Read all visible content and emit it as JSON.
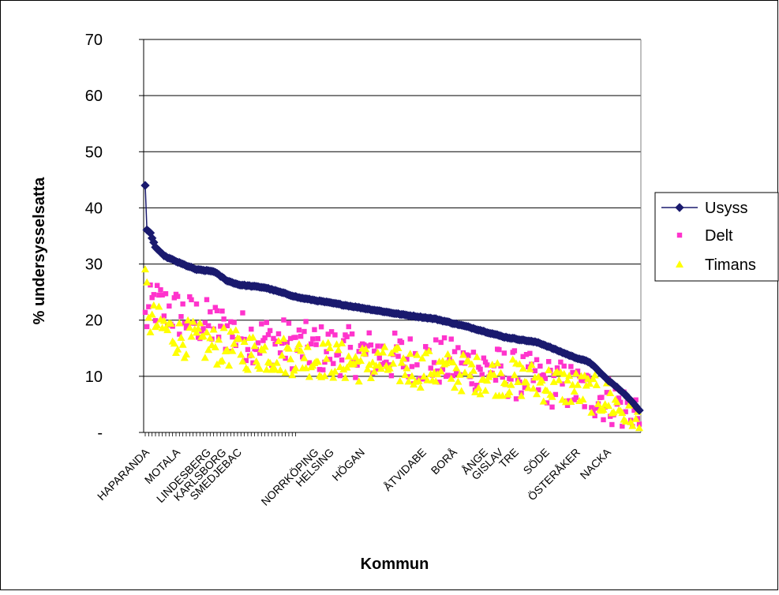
{
  "chart_data": {
    "type": "scatter",
    "title": "",
    "xlabel": "Kommun",
    "ylabel": "% undersysselsatta",
    "ylim": [
      0,
      70
    ],
    "yticks": [
      {
        "value": 0,
        "label": "-"
      },
      {
        "value": 10,
        "label": "10"
      },
      {
        "value": 20,
        "label": "20"
      },
      {
        "value": 30,
        "label": "30"
      },
      {
        "value": 40,
        "label": "40"
      },
      {
        "value": 50,
        "label": "50"
      },
      {
        "value": 60,
        "label": "60"
      },
      {
        "value": 70,
        "label": "70"
      }
    ],
    "grid": "horizontal",
    "legend_position": "right",
    "x_count": 290,
    "category_labels": [
      {
        "index": 0,
        "label": "HAPARANDA"
      },
      {
        "index": 18,
        "label": "MOTALA"
      },
      {
        "index": 36,
        "label": "LINDESBERG"
      },
      {
        "index": 45,
        "label": "KARLSBORG"
      },
      {
        "index": 54,
        "label": "SMEDJEBAC"
      },
      {
        "index": 99,
        "label": "NORRKÖPING"
      },
      {
        "index": 108,
        "label": "HELSING"
      },
      {
        "index": 126,
        "label": "HÖGAN"
      },
      {
        "index": 162,
        "label": "ÅTVIDABE"
      },
      {
        "index": 180,
        "label": "BORÅ"
      },
      {
        "index": 198,
        "label": "ÅNGE"
      },
      {
        "index": 207,
        "label": "GISLAV"
      },
      {
        "index": 216,
        "label": "TRE"
      },
      {
        "index": 234,
        "label": "SÖDE"
      },
      {
        "index": 252,
        "label": "ÖSTERÅKER"
      },
      {
        "index": 270,
        "label": "NACKA"
      }
    ],
    "series": [
      {
        "name": "Usyss",
        "marker": "diamond",
        "color": "#1a1a6e",
        "line": true,
        "anchors": [
          [
            0,
            44
          ],
          [
            1,
            36
          ],
          [
            3,
            35.5
          ],
          [
            6,
            33
          ],
          [
            9,
            32
          ],
          [
            12,
            31.3
          ],
          [
            20,
            30.2
          ],
          [
            30,
            29
          ],
          [
            40,
            28.7
          ],
          [
            48,
            27
          ],
          [
            55,
            26.3
          ],
          [
            70,
            25.8
          ],
          [
            90,
            24
          ],
          [
            110,
            23
          ],
          [
            130,
            22
          ],
          [
            150,
            21
          ],
          [
            170,
            20.2
          ],
          [
            190,
            18.7
          ],
          [
            210,
            17
          ],
          [
            230,
            16
          ],
          [
            250,
            13.5
          ],
          [
            260,
            12.5
          ],
          [
            270,
            9.5
          ],
          [
            280,
            7
          ],
          [
            289,
            4
          ]
        ]
      },
      {
        "name": "Delt",
        "marker": "square",
        "color": "#ff33cc",
        "line": false,
        "anchors": [
          [
            0,
            20
          ],
          [
            5,
            23
          ],
          [
            20,
            21
          ],
          [
            40,
            19
          ],
          [
            60,
            17
          ],
          [
            80,
            16
          ],
          [
            100,
            15
          ],
          [
            130,
            14
          ],
          [
            160,
            13
          ],
          [
            190,
            12
          ],
          [
            220,
            10
          ],
          [
            250,
            8
          ],
          [
            270,
            6
          ],
          [
            289,
            3
          ]
        ],
        "spread": 4.5
      },
      {
        "name": "Timans",
        "marker": "triangle",
        "color": "#ffff00",
        "line": false,
        "anchors": [
          [
            0,
            27
          ],
          [
            3,
            20
          ],
          [
            20,
            17
          ],
          [
            40,
            15.5
          ],
          [
            60,
            14.5
          ],
          [
            90,
            13.5
          ],
          [
            120,
            12.5
          ],
          [
            160,
            11.5
          ],
          [
            190,
            10.5
          ],
          [
            220,
            9.5
          ],
          [
            250,
            8
          ],
          [
            270,
            6
          ],
          [
            289,
            2
          ]
        ],
        "spread": 3.5
      }
    ]
  }
}
